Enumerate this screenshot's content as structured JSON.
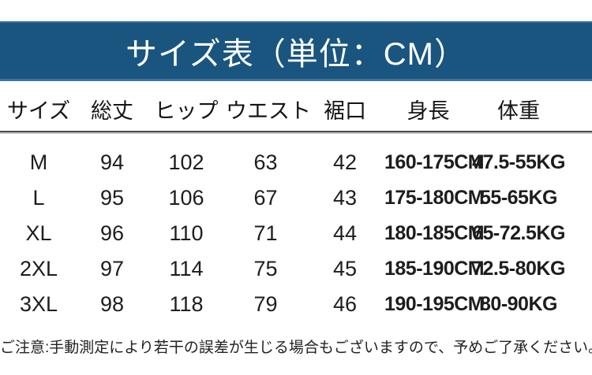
{
  "title": "サイズ表（単位：CM）",
  "note": "ご注意:手動測定により若干の誤差が生じる場合もございますので、予めご了承ください。",
  "colors": {
    "banner_fill": "#19557f",
    "banner_edge_top": "#30709f",
    "banner_edge_bottom": "#3a77a4",
    "title_text": "#ffffff",
    "table_text": "#1d1d1d",
    "divider": "#4c4c4c",
    "background": "#ffffff"
  },
  "chart_data": {
    "type": "table",
    "title": "サイズ表（単位：CM）",
    "unit": "CM",
    "columns": [
      "サイズ",
      "総丈",
      "ヒップ",
      "ウエスト",
      "裾口",
      "身長",
      "体重"
    ],
    "rows": [
      [
        "M",
        "94",
        "102",
        "63",
        "42",
        "160-175CM",
        "47.5-55KG"
      ],
      [
        "L",
        "95",
        "106",
        "67",
        "43",
        "175-180CM",
        "55-65KG"
      ],
      [
        "XL",
        "96",
        "110",
        "71",
        "44",
        "180-185CM",
        "65-72.5KG"
      ],
      [
        "2XL",
        "97",
        "114",
        "75",
        "45",
        "185-190CM",
        "72.5-80KG"
      ],
      [
        "3XL",
        "98",
        "118",
        "79",
        "46",
        "190-195CM",
        "80-90KG"
      ]
    ]
  }
}
